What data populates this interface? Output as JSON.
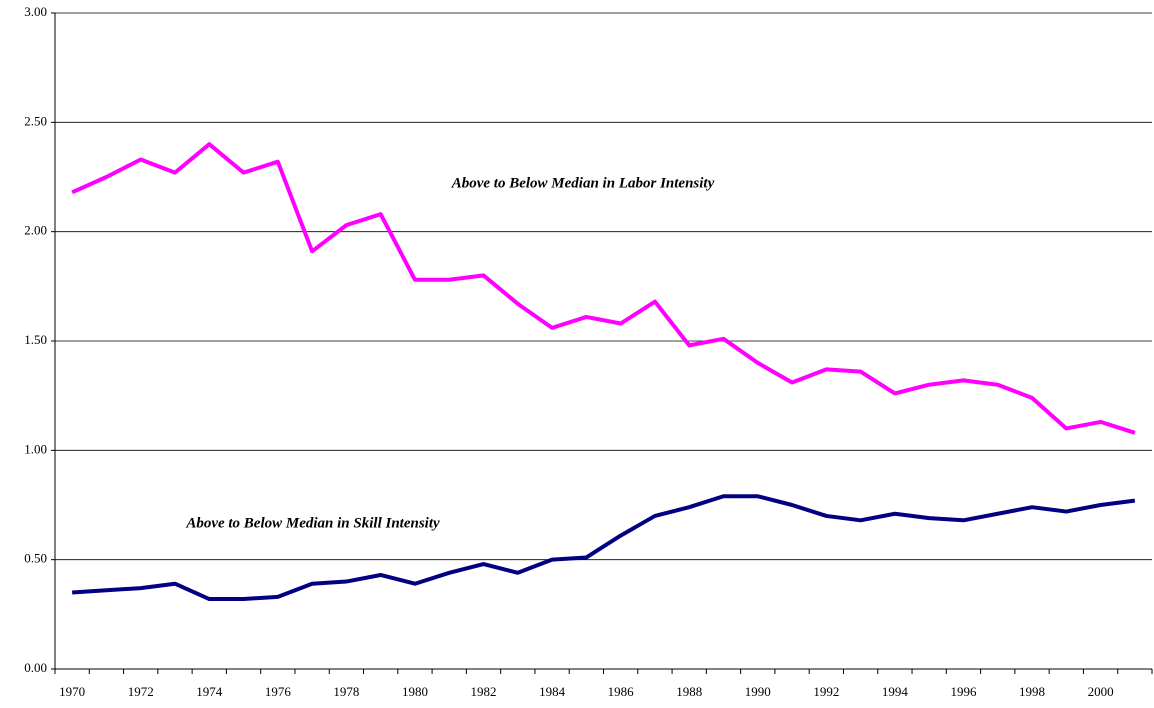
{
  "chart_data": {
    "type": "line",
    "categories": [
      "1970",
      null,
      "1972",
      null,
      "1974",
      null,
      "1976",
      null,
      "1978",
      null,
      "1980",
      null,
      "1982",
      null,
      "1984",
      null,
      "1986",
      null,
      "1988",
      null,
      "1990",
      null,
      "1992",
      null,
      "1994",
      null,
      "1996",
      null,
      "1998",
      null,
      "2000",
      null
    ],
    "series": [
      {
        "name": "Above to Below Median in Labor Intensity",
        "color": "#ff00ff",
        "values": [
          2.18,
          2.25,
          2.33,
          2.27,
          2.4,
          2.27,
          2.32,
          1.91,
          2.03,
          2.08,
          1.78,
          1.78,
          1.8,
          1.67,
          1.56,
          1.61,
          1.58,
          1.68,
          1.48,
          1.51,
          1.4,
          1.31,
          1.37,
          1.36,
          1.26,
          1.3,
          1.32,
          1.3,
          1.24,
          1.1,
          1.13,
          1.08
        ]
      },
      {
        "name": "Above to Below Median in Skill Intensity",
        "color": "#000080",
        "values": [
          0.35,
          0.36,
          0.37,
          0.39,
          0.32,
          0.32,
          0.33,
          0.39,
          0.4,
          0.43,
          0.39,
          0.44,
          0.48,
          0.44,
          0.5,
          0.51,
          0.61,
          0.7,
          0.74,
          0.79,
          0.79,
          0.75,
          0.7,
          0.68,
          0.71,
          0.69,
          0.68,
          0.71,
          0.74,
          0.72,
          0.75,
          0.77
        ]
      }
    ],
    "ylim": [
      0,
      3
    ],
    "yticks": [
      {
        "value": 0,
        "label": "0.00"
      },
      {
        "value": 0.5,
        "label": "0.50"
      },
      {
        "value": 1,
        "label": "1.00"
      },
      {
        "value": 1.5,
        "label": "1.50"
      },
      {
        "value": 2,
        "label": "2.00"
      },
      {
        "value": 2.5,
        "label": "2.50"
      },
      {
        "value": 3,
        "label": "3.00"
      }
    ],
    "grid": true
  }
}
